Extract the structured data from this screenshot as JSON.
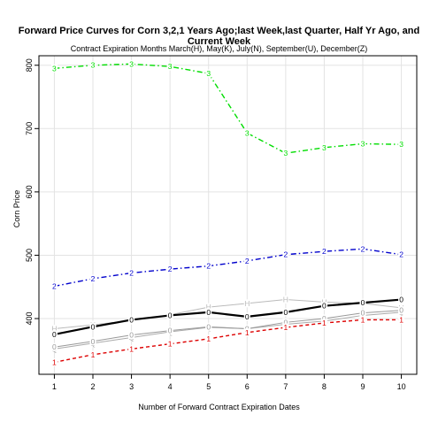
{
  "chart_data": {
    "type": "line",
    "title": "Forward Price Curves for Corn 3,2,1 Years Ago;last Week,last Quarter, Half Yr Ago, and Current Week",
    "subtitle": "Contract Expiration Months March(H), May(K), July(N), September(U), December(Z)",
    "xlabel": "Number of Forward Contract Expiration Dates",
    "ylabel": "Corn Price",
    "x": [
      1,
      2,
      3,
      4,
      5,
      6,
      7,
      8,
      9,
      10
    ],
    "xlim": [
      0.6,
      10.4
    ],
    "ylim": [
      312,
      815
    ],
    "xticks": [
      "1",
      "2",
      "3",
      "4",
      "5",
      "6",
      "7",
      "8",
      "9",
      "10"
    ],
    "yticks": [
      400,
      500,
      600,
      700,
      800
    ],
    "grid": true,
    "series": [
      {
        "marker": "3",
        "color": "#00dd00",
        "style": "dashdot",
        "width": 1.4,
        "values": [
          795,
          800,
          802,
          798,
          787,
          693,
          661,
          670,
          676,
          675
        ]
      },
      {
        "marker": "2",
        "color": "#0000cc",
        "style": "dashdot",
        "width": 1.4,
        "values": [
          451,
          463,
          472,
          478,
          483,
          491,
          501,
          506,
          510,
          501
        ]
      },
      {
        "marker": "H",
        "color": "#bbbbbb",
        "style": "solid",
        "width": 1,
        "values": [
          384,
          390,
          397,
          406,
          418,
          424,
          430,
          426,
          424,
          417
        ]
      },
      {
        "marker": "0",
        "color": "#000000",
        "style": "solid",
        "width": 2.2,
        "values": [
          375,
          387,
          398,
          405,
          410,
          403,
          410,
          420,
          425,
          430
        ]
      },
      {
        "marker": "Q",
        "color": "#aaaaaa",
        "style": "solid",
        "width": 1,
        "values": [
          352,
          361,
          370,
          379,
          386,
          384,
          391,
          396,
          405,
          410
        ]
      },
      {
        "marker": "0",
        "color": "#999999",
        "style": "solid",
        "width": 1,
        "values": [
          355,
          364,
          374,
          381,
          387,
          384,
          394,
          400,
          409,
          413
        ]
      },
      {
        "marker": "1",
        "color": "#dd0000",
        "style": "dashed",
        "width": 1.4,
        "values": [
          331,
          343,
          352,
          360,
          368,
          378,
          386,
          393,
          398,
          398
        ]
      }
    ]
  }
}
